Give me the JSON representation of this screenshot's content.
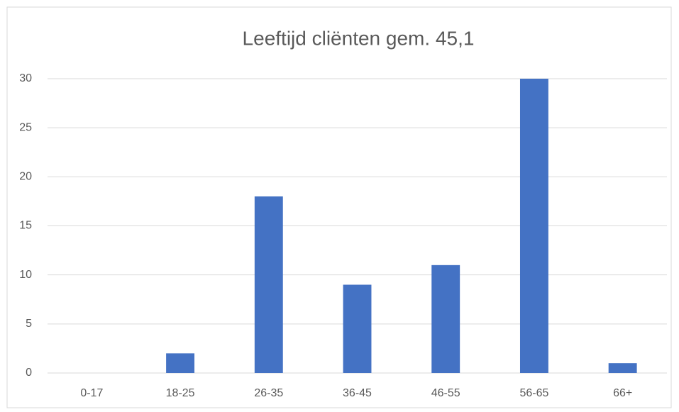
{
  "chart_data": {
    "type": "bar",
    "title": "Leeftijd cliënten gem. 45,1",
    "categories": [
      "0-17",
      "18-25",
      "26-35",
      "36-45",
      "46-55",
      "56-65",
      "66+"
    ],
    "values": [
      0,
      2,
      18,
      9,
      11,
      30,
      1
    ],
    "color": "#4472c4",
    "ylim": [
      0,
      30
    ],
    "yticks": [
      0,
      5,
      10,
      15,
      20,
      25,
      30
    ],
    "grid": true
  }
}
